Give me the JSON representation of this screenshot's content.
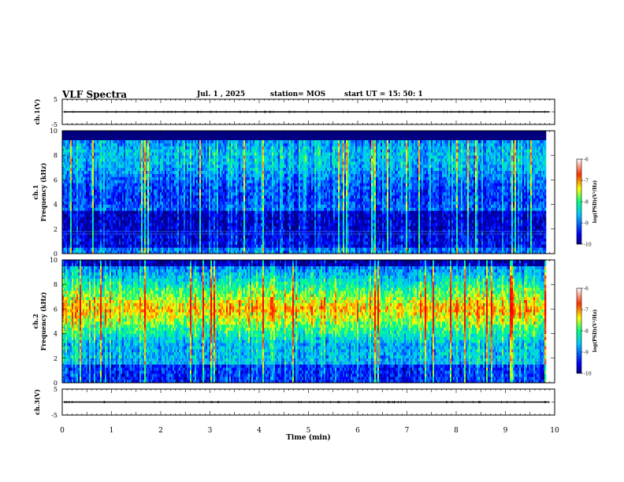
{
  "header": {
    "title": "VLF Spectra",
    "date": "Jul.  1  , 2025",
    "station": "station= MOS",
    "start": "start  UT  =   15: 50: 1"
  },
  "chart_data": [
    {
      "type": "line",
      "panel": "ch1-waveform",
      "ylabel": "ch.1(V)",
      "ylim": [
        -5,
        5
      ],
      "yticks": [
        "5",
        "-5"
      ],
      "trace_value": 0,
      "xlim": [
        0,
        10
      ]
    },
    {
      "type": "heatmap",
      "panel": "ch1-spectrogram",
      "ylabel_line1": "ch.1",
      "ylabel_line2": "Frequency  (kHz)",
      "ylim": [
        0,
        10
      ],
      "yticks": [
        "0",
        "2",
        "4",
        "6",
        "8",
        "10"
      ],
      "xlim": [
        0,
        10
      ],
      "data_end_min": 9.85,
      "colorbar": {
        "label": "log(PSD)(V²/Hz)",
        "range": [
          -10,
          -6
        ],
        "ticks": [
          "-6",
          "-7",
          "-8",
          "-9",
          "-10"
        ]
      }
    },
    {
      "type": "heatmap",
      "panel": "ch2-spectrogram",
      "ylabel_line1": "ch.2",
      "ylabel_line2": "Frequency  (kHz)",
      "ylim": [
        0,
        10
      ],
      "yticks": [
        "0",
        "2",
        "4",
        "6",
        "8",
        "10"
      ],
      "xlim": [
        0,
        10
      ],
      "data_end_min": 9.85,
      "colorbar": {
        "label": "log(PSD)(V²/Hz)",
        "range": [
          -10,
          -6
        ],
        "ticks": [
          "-6",
          "-7",
          "-8",
          "-9",
          "-10"
        ]
      }
    },
    {
      "type": "line",
      "panel": "ch3-waveform",
      "ylabel": "ch.3(V)",
      "ylim": [
        -5,
        5
      ],
      "yticks": [
        "5",
        "-5"
      ],
      "trace_value": 0,
      "xlim": [
        0,
        10
      ]
    }
  ],
  "xaxis": {
    "label": "Time  (min)",
    "ticks": [
      "0",
      "1",
      "2",
      "3",
      "4",
      "5",
      "6",
      "7",
      "8",
      "9",
      "10"
    ]
  }
}
